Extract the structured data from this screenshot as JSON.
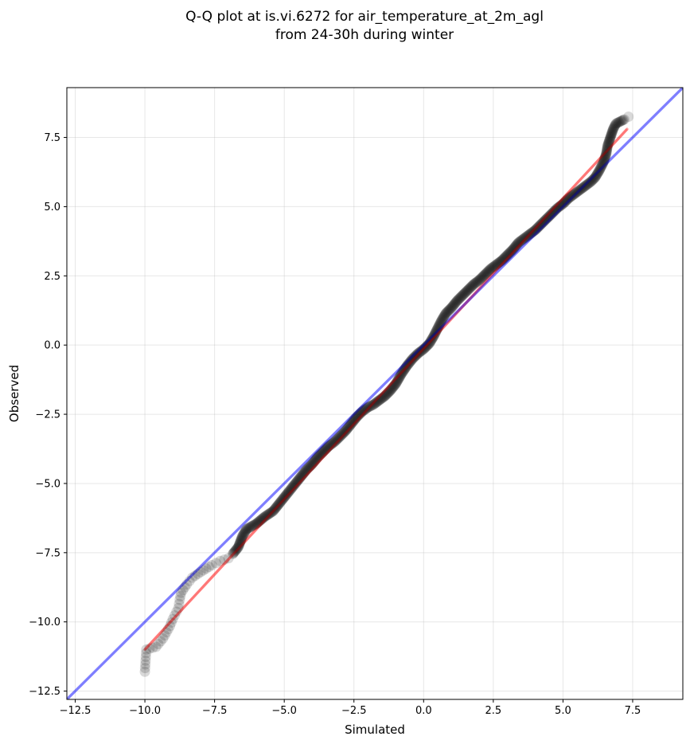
{
  "chart_data": {
    "type": "scatter",
    "title": "Q-Q plot at is.vi.6272 for air_temperature_at_2m_agl\nfrom 24-30h during winter",
    "xlabel": "Simulated",
    "ylabel": "Observed",
    "xlim": [
      -12.8,
      9.3
    ],
    "ylim": [
      -12.8,
      9.3
    ],
    "grid": true,
    "xticks": [
      -12.5,
      -10.0,
      -7.5,
      -5.0,
      -2.5,
      0.0,
      2.5,
      5.0,
      7.5
    ],
    "xtick_labels": [
      "−12.5",
      "−10.0",
      "−7.5",
      "−5.0",
      "−2.5",
      "0.0",
      "2.5",
      "5.0",
      "7.5"
    ],
    "yticks": [
      -12.5,
      -10.0,
      -7.5,
      -5.0,
      -2.5,
      0.0,
      2.5,
      5.0,
      7.5
    ],
    "ytick_labels": [
      "−12.5",
      "−10.0",
      "−7.5",
      "−5.0",
      "−2.5",
      "0.0",
      "2.5",
      "5.0",
      "7.5"
    ],
    "series": [
      {
        "type": "scatter",
        "color": "#000000",
        "opacity": 0.15,
        "points": [
          [
            -10.0,
            -11.8
          ],
          [
            -9.95,
            -11.0
          ],
          [
            -9.6,
            -10.9
          ],
          [
            -9.35,
            -10.6
          ],
          [
            -9.1,
            -10.15
          ],
          [
            -9.0,
            -9.9
          ],
          [
            -8.8,
            -9.5
          ],
          [
            -8.75,
            -9.2
          ],
          [
            -8.7,
            -8.95
          ],
          [
            -8.5,
            -8.65
          ],
          [
            -8.3,
            -8.4
          ],
          [
            -8.0,
            -8.2
          ],
          [
            -7.6,
            -7.95
          ],
          [
            -7.3,
            -7.8
          ],
          [
            -7.0,
            -7.7
          ],
          [
            -6.85,
            -7.55
          ],
          [
            -6.65,
            -7.3
          ],
          [
            -6.5,
            -6.9
          ],
          [
            -6.35,
            -6.65
          ],
          [
            -6.0,
            -6.45
          ],
          [
            -5.7,
            -6.2
          ],
          [
            -5.4,
            -6.0
          ],
          [
            -5.2,
            -5.75
          ],
          [
            -5.0,
            -5.5
          ],
          [
            -4.8,
            -5.25
          ],
          [
            -4.6,
            -5.0
          ],
          [
            -4.4,
            -4.75
          ],
          [
            -4.2,
            -4.5
          ],
          [
            -4.0,
            -4.3
          ],
          [
            -3.8,
            -4.05
          ],
          [
            -3.6,
            -3.85
          ],
          [
            -3.4,
            -3.65
          ],
          [
            -3.2,
            -3.5
          ],
          [
            -3.0,
            -3.3
          ],
          [
            -2.8,
            -3.1
          ],
          [
            -2.6,
            -2.85
          ],
          [
            -2.4,
            -2.6
          ],
          [
            -2.2,
            -2.4
          ],
          [
            -2.0,
            -2.25
          ],
          [
            -1.8,
            -2.15
          ],
          [
            -1.6,
            -2.0
          ],
          [
            -1.4,
            -1.85
          ],
          [
            -1.2,
            -1.65
          ],
          [
            -1.0,
            -1.4
          ],
          [
            -0.8,
            -1.05
          ],
          [
            -0.6,
            -0.75
          ],
          [
            -0.4,
            -0.5
          ],
          [
            -0.2,
            -0.3
          ],
          [
            0.0,
            -0.15
          ],
          [
            0.2,
            0.05
          ],
          [
            0.35,
            0.3
          ],
          [
            0.5,
            0.6
          ],
          [
            0.65,
            0.9
          ],
          [
            0.8,
            1.15
          ],
          [
            1.0,
            1.35
          ],
          [
            1.2,
            1.6
          ],
          [
            1.4,
            1.8
          ],
          [
            1.6,
            2.0
          ],
          [
            1.8,
            2.2
          ],
          [
            2.0,
            2.35
          ],
          [
            2.2,
            2.55
          ],
          [
            2.4,
            2.75
          ],
          [
            2.6,
            2.9
          ],
          [
            2.8,
            3.05
          ],
          [
            3.0,
            3.25
          ],
          [
            3.2,
            3.45
          ],
          [
            3.4,
            3.7
          ],
          [
            3.6,
            3.85
          ],
          [
            3.8,
            4.0
          ],
          [
            4.0,
            4.15
          ],
          [
            4.2,
            4.35
          ],
          [
            4.4,
            4.55
          ],
          [
            4.6,
            4.75
          ],
          [
            4.8,
            4.95
          ],
          [
            5.0,
            5.1
          ],
          [
            5.2,
            5.3
          ],
          [
            5.4,
            5.45
          ],
          [
            5.6,
            5.6
          ],
          [
            5.8,
            5.75
          ],
          [
            6.0,
            5.9
          ],
          [
            6.15,
            6.05
          ],
          [
            6.3,
            6.3
          ],
          [
            6.45,
            6.6
          ],
          [
            6.55,
            6.9
          ],
          [
            6.6,
            7.2
          ],
          [
            6.7,
            7.5
          ],
          [
            6.8,
            7.8
          ],
          [
            6.9,
            8.0
          ],
          [
            7.2,
            8.15
          ],
          [
            7.35,
            8.25
          ]
        ]
      },
      {
        "type": "line",
        "color": "#ff0000",
        "opacity": 0.35,
        "points": [
          [
            -10.0,
            -11.0
          ],
          [
            7.3,
            7.8
          ]
        ]
      },
      {
        "type": "line",
        "color": "#0000ff",
        "opacity": 0.33,
        "points": [
          [
            -12.8,
            -12.8
          ],
          [
            9.3,
            9.3
          ]
        ]
      }
    ]
  }
}
